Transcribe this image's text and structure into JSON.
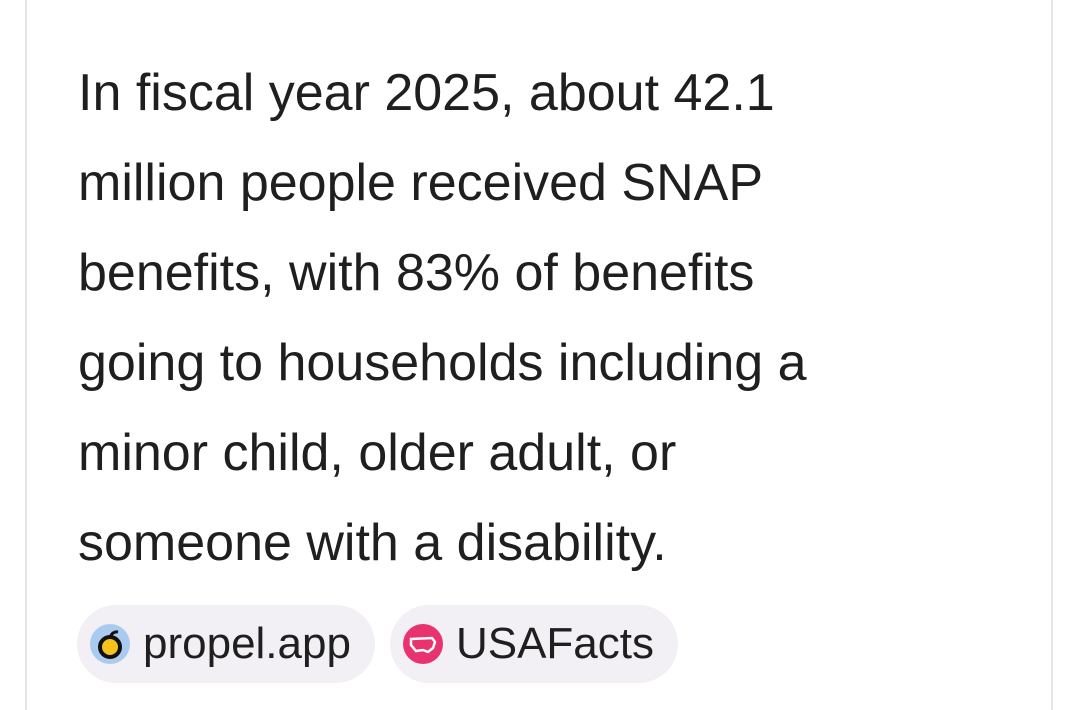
{
  "answer": {
    "lines": [
      "In fiscal year 2025, about 42.1",
      "million people received SNAP",
      "benefits, with 83% of benefits",
      "going to households including a",
      "minor child, older adult, or",
      "someone with a disability."
    ]
  },
  "sources": [
    {
      "label": "propel.app"
    },
    {
      "label": "USAFacts"
    }
  ]
}
